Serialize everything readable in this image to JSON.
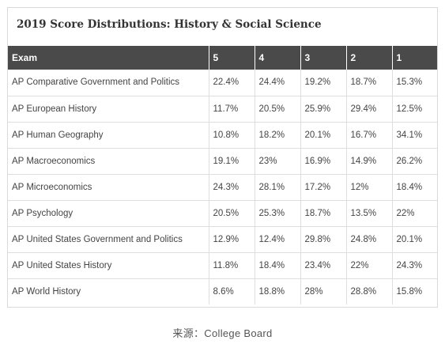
{
  "title": "2019 Score Distributions: History & Social Science",
  "table": {
    "headers": [
      "Exam",
      "5",
      "4",
      "3",
      "2",
      "1"
    ],
    "rows": [
      [
        "AP Comparative Government and Politics",
        "22.4%",
        "24.4%",
        "19.2%",
        "18.7%",
        "15.3%"
      ],
      [
        "AP European History",
        "11.7%",
        "20.5%",
        "25.9%",
        "29.4%",
        "12.5%"
      ],
      [
        "AP Human Geography",
        "10.8%",
        "18.2%",
        "20.1%",
        "16.7%",
        "34.1%"
      ],
      [
        "AP Macroeconomics",
        "19.1%",
        "23%",
        "16.9%",
        "14.9%",
        "26.2%"
      ],
      [
        "AP Microeconomics",
        "24.3%",
        "28.1%",
        "17.2%",
        "12%",
        "18.4%"
      ],
      [
        "AP Psychology",
        "20.5%",
        "25.3%",
        "18.7%",
        "13.5%",
        "22%"
      ],
      [
        "AP United States Government and Politics",
        "12.9%",
        "12.4%",
        "29.8%",
        "24.8%",
        "20.1%"
      ],
      [
        "AP United States History",
        "11.8%",
        "18.4%",
        "23.4%",
        "22%",
        "24.3%"
      ],
      [
        "AP World History",
        "8.6%",
        "18.8%",
        "28%",
        "28.8%",
        "15.8%"
      ]
    ]
  },
  "source": "来源：College Board",
  "colors": {
    "header_bg": "#4a4a4a",
    "header_text": "#ffffff",
    "border": "#dedede"
  }
}
